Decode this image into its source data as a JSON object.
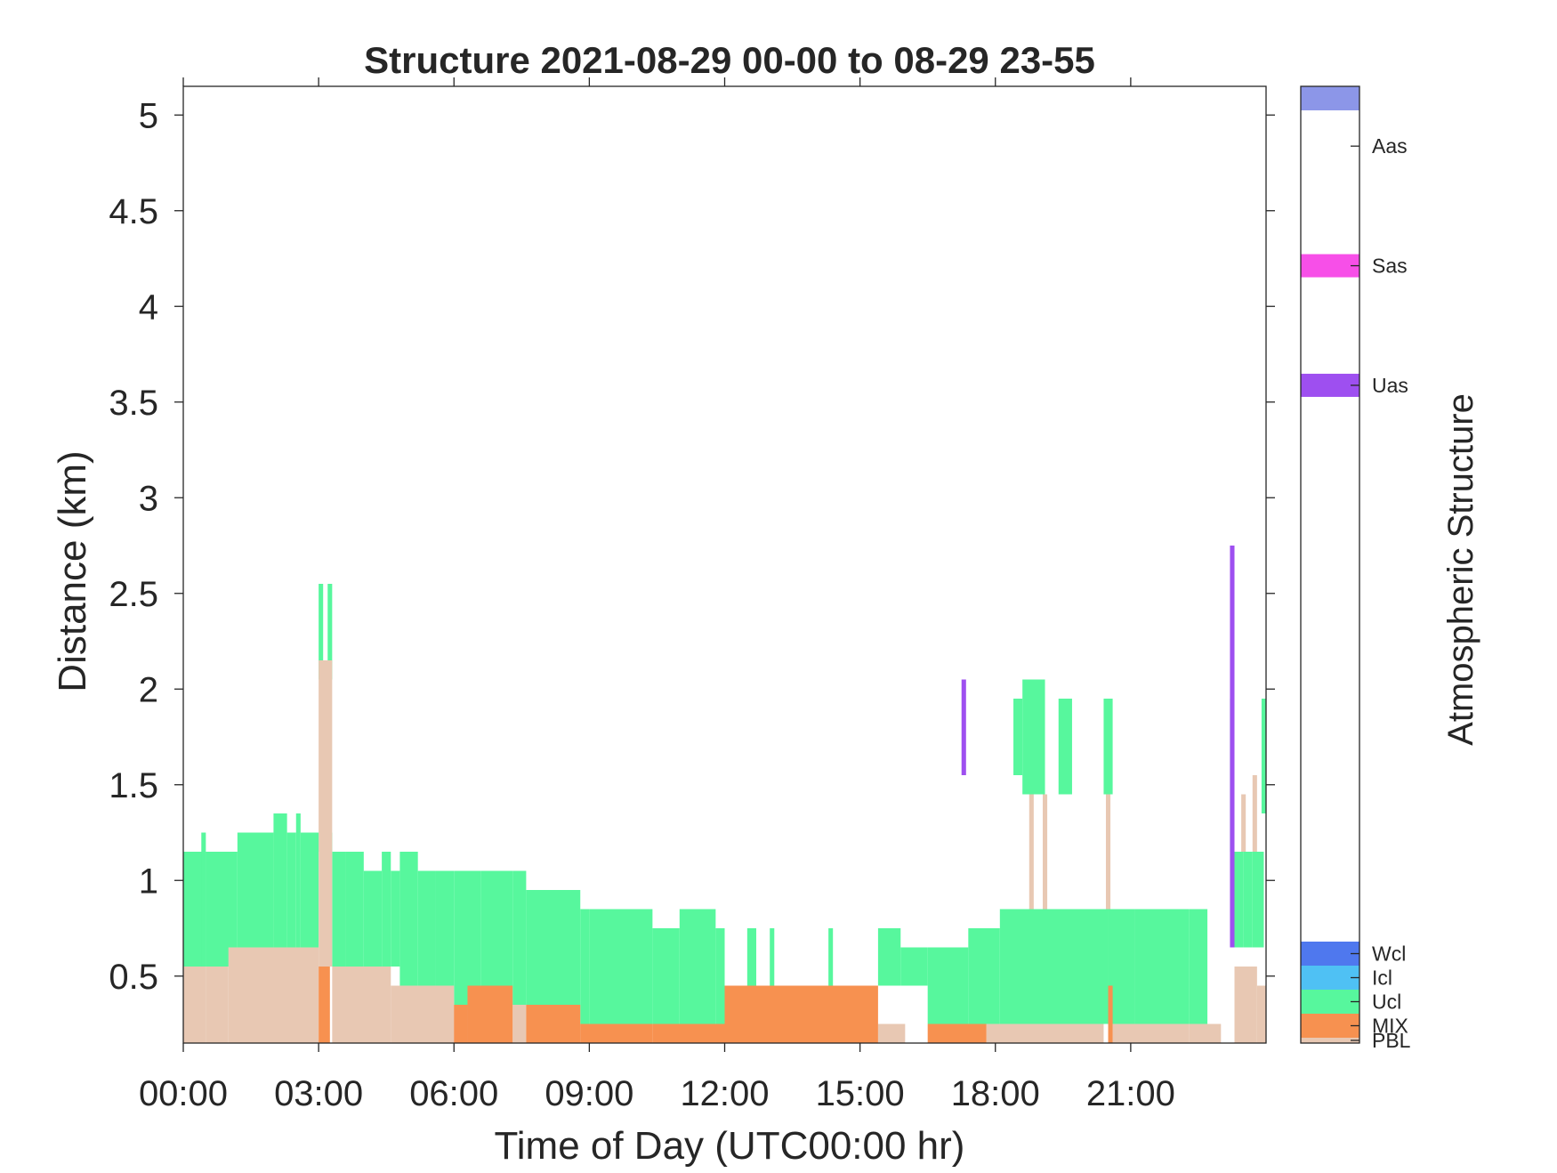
{
  "chart_data": {
    "type": "heatmap",
    "title": "Structure 2021-08-29 00-00 to 08-29 23-55",
    "xlabel": "Time of Day (UTC00:00 hr)",
    "ylabel": "Distance (km)",
    "xlim_hours": [
      0,
      24
    ],
    "ylim_km": [
      0.15,
      5.15
    ],
    "x_ticks": [
      "00:00",
      "03:00",
      "06:00",
      "09:00",
      "12:00",
      "15:00",
      "18:00",
      "21:00"
    ],
    "x_tick_hours": [
      0,
      3,
      6,
      9,
      12,
      15,
      18,
      21
    ],
    "y_ticks": [
      "0.5",
      "1",
      "1.5",
      "2",
      "2.5",
      "3",
      "3.5",
      "4",
      "4.5",
      "5"
    ],
    "y_tick_values": [
      0.5,
      1,
      1.5,
      2,
      2.5,
      3,
      3.5,
      4,
      4.5,
      5
    ],
    "colorbar": {
      "label": "Atmospheric Structure",
      "classes": [
        {
          "code": 1,
          "name": "PBL",
          "color": "#e8c8b3"
        },
        {
          "code": 2,
          "name": "MIX",
          "color": "#f79150"
        },
        {
          "code": 3,
          "name": "Ucl",
          "color": "#57f79d"
        },
        {
          "code": 4,
          "name": "Icl",
          "color": "#4fc1f4"
        },
        {
          "code": 5,
          "name": "Wcl",
          "color": "#4f78ee"
        },
        {
          "code": 6,
          "name": "Uas",
          "color": "#9e4ff0"
        },
        {
          "code": 7,
          "name": "Sas",
          "color": "#f74fe8"
        },
        {
          "code": 8,
          "name": "Aas",
          "color": "#8c96e8"
        }
      ]
    },
    "layers": [
      {
        "structure": "Ucl",
        "segments": [
          [
            0.0,
            0.5,
            0.55,
            1.15
          ],
          [
            0.4,
            0.5,
            0.55,
            1.25
          ],
          [
            0.5,
            1.2,
            0.55,
            1.15
          ],
          [
            1.2,
            2.0,
            0.65,
            1.25
          ],
          [
            2.0,
            2.3,
            0.65,
            1.35
          ],
          [
            2.3,
            2.5,
            0.65,
            1.25
          ],
          [
            2.5,
            2.6,
            0.65,
            1.35
          ],
          [
            2.6,
            3.0,
            0.65,
            1.25
          ],
          [
            3.0,
            3.3,
            1.15,
            1.25
          ],
          [
            3.0,
            3.1,
            2.05,
            2.55
          ],
          [
            3.2,
            3.3,
            2.05,
            2.55
          ],
          [
            3.3,
            3.6,
            0.55,
            1.15
          ],
          [
            3.6,
            4.0,
            0.55,
            1.15
          ],
          [
            4.0,
            4.4,
            0.55,
            1.05
          ],
          [
            4.4,
            4.6,
            0.55,
            1.15
          ],
          [
            4.6,
            4.8,
            0.55,
            1.05
          ],
          [
            4.8,
            5.2,
            0.45,
            1.15
          ],
          [
            5.2,
            5.6,
            0.45,
            1.05
          ],
          [
            5.6,
            6.0,
            0.45,
            1.05
          ],
          [
            6.0,
            6.6,
            0.35,
            1.05
          ],
          [
            6.6,
            7.3,
            0.45,
            1.05
          ],
          [
            7.3,
            7.6,
            0.35,
            1.05
          ],
          [
            7.6,
            8.8,
            0.35,
            0.95
          ],
          [
            8.8,
            9.0,
            0.25,
            0.85
          ],
          [
            9.0,
            10.4,
            0.25,
            0.85
          ],
          [
            10.4,
            11.0,
            0.25,
            0.75
          ],
          [
            11.0,
            11.8,
            0.25,
            0.85
          ],
          [
            11.8,
            12.0,
            0.25,
            0.75
          ],
          [
            12.5,
            12.7,
            0.45,
            0.75
          ],
          [
            13.0,
            13.1,
            0.25,
            0.75
          ],
          [
            14.3,
            14.4,
            0.45,
            0.75
          ],
          [
            15.4,
            15.9,
            0.45,
            0.75
          ],
          [
            15.9,
            16.5,
            0.45,
            0.65
          ],
          [
            16.5,
            17.4,
            0.25,
            0.65
          ],
          [
            17.4,
            18.1,
            0.25,
            0.75
          ],
          [
            18.1,
            20.5,
            0.25,
            0.85
          ],
          [
            20.5,
            21.1,
            0.25,
            0.85
          ],
          [
            21.1,
            22.3,
            0.25,
            0.85
          ],
          [
            22.3,
            22.7,
            0.25,
            0.85
          ],
          [
            18.4,
            18.6,
            1.55,
            1.95
          ],
          [
            18.6,
            19.1,
            1.45,
            2.05
          ],
          [
            19.4,
            19.7,
            1.45,
            1.95
          ],
          [
            20.4,
            20.6,
            1.45,
            1.95
          ],
          [
            23.2,
            23.3,
            1.15,
            1.95
          ],
          [
            23.3,
            23.5,
            0.65,
            1.15
          ],
          [
            23.5,
            23.7,
            0.65,
            1.15
          ],
          [
            23.7,
            23.95,
            0.65,
            1.15
          ],
          [
            23.9,
            24.0,
            1.35,
            1.95
          ]
        ]
      },
      {
        "structure": "PBL",
        "segments": [
          [
            0.0,
            0.5,
            0.15,
            0.55
          ],
          [
            0.5,
            1.0,
            0.15,
            0.55
          ],
          [
            1.0,
            3.0,
            0.15,
            0.65
          ],
          [
            3.0,
            3.3,
            0.55,
            2.15
          ],
          [
            3.3,
            4.6,
            0.15,
            0.55
          ],
          [
            4.6,
            6.0,
            0.15,
            0.45
          ],
          [
            6.0,
            6.4,
            0.15,
            0.35
          ],
          [
            7.3,
            7.6,
            0.15,
            0.35
          ],
          [
            8.8,
            10.0,
            0.15,
            0.25
          ],
          [
            15.4,
            16.0,
            0.15,
            0.25
          ],
          [
            17.8,
            20.4,
            0.15,
            0.25
          ],
          [
            20.6,
            22.3,
            0.15,
            0.25
          ],
          [
            22.3,
            23.0,
            0.15,
            0.25
          ],
          [
            23.3,
            23.8,
            0.15,
            0.55
          ],
          [
            23.8,
            24.0,
            0.15,
            0.45
          ],
          [
            18.75,
            18.85,
            0.85,
            1.45
          ],
          [
            19.05,
            19.15,
            0.85,
            1.45
          ],
          [
            20.45,
            20.55,
            0.85,
            1.45
          ],
          [
            23.45,
            23.55,
            1.15,
            1.45
          ],
          [
            23.7,
            23.8,
            1.15,
            1.55
          ]
        ]
      },
      {
        "structure": "MIX",
        "segments": [
          [
            3.0,
            3.25,
            0.15,
            0.55
          ],
          [
            6.0,
            6.3,
            0.15,
            0.35
          ],
          [
            6.3,
            7.3,
            0.15,
            0.45
          ],
          [
            7.6,
            8.8,
            0.15,
            0.35
          ],
          [
            8.8,
            10.4,
            0.15,
            0.25
          ],
          [
            10.4,
            12.0,
            0.15,
            0.25
          ],
          [
            12.0,
            15.4,
            0.15,
            0.45
          ],
          [
            16.5,
            17.8,
            0.15,
            0.25
          ],
          [
            20.5,
            20.6,
            0.15,
            0.45
          ]
        ]
      },
      {
        "structure": "Uas",
        "segments": [
          [
            17.25,
            17.35,
            1.55,
            2.05
          ],
          [
            23.2,
            23.3,
            0.65,
            2.75
          ]
        ]
      }
    ]
  }
}
